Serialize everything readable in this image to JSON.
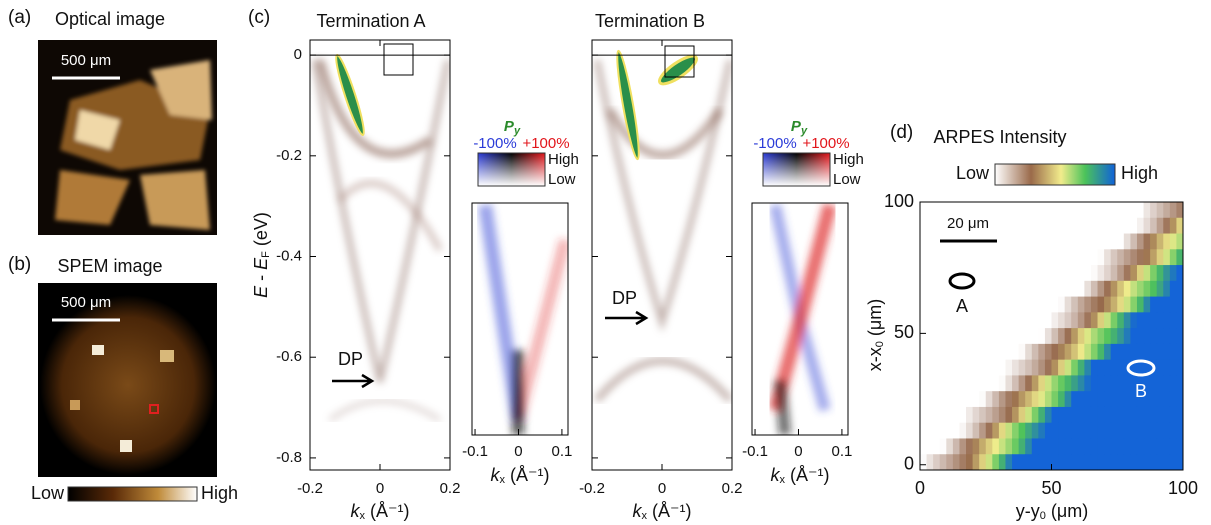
{
  "panels": {
    "a": {
      "label": "(a)",
      "title": "Optical image",
      "scale_bar": "500 μm"
    },
    "b": {
      "label": "(b)",
      "title": "SPEM image",
      "scale_bar": "500 μm",
      "colorbar": {
        "low": "Low",
        "high": "High"
      }
    },
    "c": {
      "label": "(c)",
      "y_label": {
        "e1": "E",
        "mid": " - ",
        "e2": "E",
        "sub": "F",
        "unit": " (eV)"
      },
      "k_label": {
        "k": "k",
        "sub": "x",
        "unit": " (Å⁻¹)"
      },
      "termination_a": {
        "title": "Termination A",
        "dp": "DP"
      },
      "termination_b": {
        "title": "Termination B",
        "dp": "DP"
      },
      "spin_legend": {
        "symbol": "P",
        "sub": "y",
        "neg": "-100%",
        "pos": "+100%",
        "high": "High",
        "low": "Low"
      },
      "energy_ticks": [
        0,
        -0.2,
        -0.4,
        -0.6,
        -0.8
      ],
      "energy_lim": [
        -0.824,
        0.03
      ],
      "k_ticks": [
        -0.2,
        0,
        0.2
      ],
      "k_lim": [
        -0.2,
        0.2
      ],
      "inset_k_ticks": [
        -0.1,
        0,
        0.1
      ],
      "inset_k_lim": [
        -0.107,
        0.114
      ]
    },
    "d": {
      "label": "(d)",
      "title": "ARPES Intensity",
      "colorbar": {
        "low": "Low",
        "high": "High"
      },
      "scale_bar": "20 μm",
      "x_label": {
        "base": "y-y",
        "sub": "0",
        "unit": " (μm)"
      },
      "y_label": {
        "base": "x-x",
        "sub": "0",
        "unit": " (μm)"
      },
      "xticks": [
        0,
        50,
        100
      ],
      "xlim": [
        0,
        100
      ],
      "yticks": [
        0,
        50,
        100
      ],
      "ylim": [
        -2,
        100
      ],
      "spots": [
        "A",
        "B"
      ]
    }
  }
}
